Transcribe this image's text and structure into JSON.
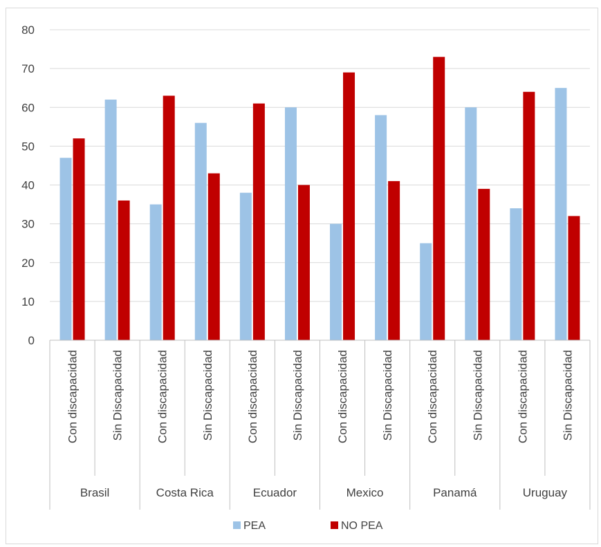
{
  "chart_data": {
    "type": "bar",
    "groups": [
      {
        "label": "Brasil",
        "categories": [
          "Con discapacidad",
          "Sin Discapacidad"
        ]
      },
      {
        "label": "Costa Rica",
        "categories": [
          "Con discapacidad",
          "Sin Discapacidad"
        ]
      },
      {
        "label": "Ecuador",
        "categories": [
          "Con discapacidad",
          "Sin Discapacidad"
        ]
      },
      {
        "label": "Mexico",
        "categories": [
          "Con discapacidad",
          "Sin Discapacidad"
        ]
      },
      {
        "label": "Panamá",
        "categories": [
          "Con discapacidad",
          "Sin Discapacidad"
        ]
      },
      {
        "label": "Uruguay",
        "categories": [
          "Con discapacidad",
          "Sin Discapacidad"
        ]
      }
    ],
    "series": [
      {
        "name": "PEA",
        "color": "#9dc3e6",
        "values": [
          47,
          62,
          35,
          56,
          38,
          60,
          30,
          58,
          25,
          60,
          34,
          65
        ]
      },
      {
        "name": "NO PEA",
        "color": "#c00000",
        "values": [
          52,
          36,
          63,
          43,
          61,
          40,
          69,
          41,
          73,
          39,
          64,
          32
        ]
      }
    ],
    "ylim": [
      0,
      80
    ],
    "yticks": [
      0,
      10,
      20,
      30,
      40,
      50,
      60,
      70,
      80
    ],
    "grid": true,
    "legend_position": "bottom",
    "title": "",
    "xlabel": "",
    "ylabel": ""
  }
}
